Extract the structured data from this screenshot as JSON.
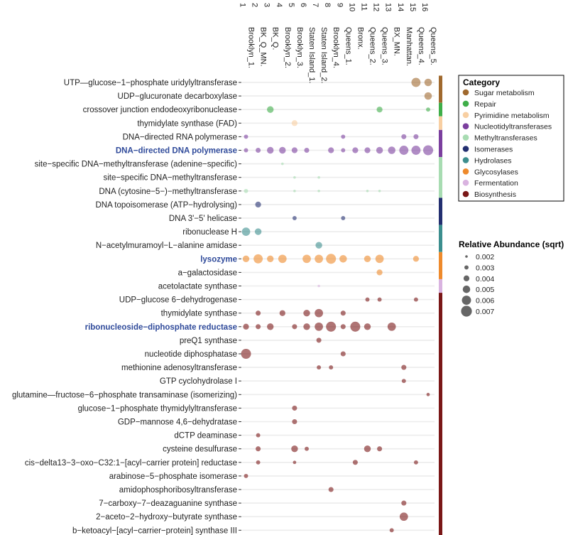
{
  "chart_data": {
    "type": "scatter",
    "title": "",
    "xlabel": "",
    "ylabel": "",
    "x_categories": [
      "Brooklyn_1.\n1",
      "BK_Q_MN.\n2",
      "BK_Q.\n3",
      "Brooklyn_2.\n4",
      "Brooklyn_3.\n5",
      "Staten Island_1.\n6",
      "Staten Island_2.\n7",
      "Brooklyn_4.\n8",
      "Queens_1.\n9",
      "Bronx.\n10",
      "Queens_2.\n11",
      "Queens_3.\n12",
      "BX_MN.\n13",
      "Manhattan.\n14",
      "Queens_4.\n15",
      "Queens_5.\n16"
    ],
    "y_categories": [
      {
        "label": "UTP—glucose−1−phosphate uridylyltransferase",
        "category": "Sugar metabolism",
        "highlight": false
      },
      {
        "label": "UDP−glucuronate decarboxylase",
        "category": "Sugar metabolism",
        "highlight": false
      },
      {
        "label": "crossover junction endodeoxyribonuclease",
        "category": "Repair",
        "highlight": false
      },
      {
        "label": "thymidylate synthase (FAD)",
        "category": "Pyrimidine metabolism",
        "highlight": false
      },
      {
        "label": "DNA−directed RNA polymerase",
        "category": "Nucleotidyltransferases",
        "highlight": false
      },
      {
        "label": "DNA−directed DNA polymerase",
        "category": "Nucleotidyltransferases",
        "highlight": true
      },
      {
        "label": "site−specific DNA−methyltransferase (adenine−specific)",
        "category": "Methyltransferases",
        "highlight": false
      },
      {
        "label": "site−specific DNA−methyltransferase",
        "category": "Methyltransferases",
        "highlight": false
      },
      {
        "label": "DNA (cytosine−5−)−methyltransferase",
        "category": "Methyltransferases",
        "highlight": false
      },
      {
        "label": "DNA topoisomerase (ATP−hydrolysing)",
        "category": "Isomerases",
        "highlight": false
      },
      {
        "label": "DNA 3'−5' helicase",
        "category": "Isomerases",
        "highlight": false
      },
      {
        "label": "ribonuclease H",
        "category": "Hydrolases",
        "highlight": false
      },
      {
        "label": "N−acetylmuramoyl−L−alanine amidase",
        "category": "Hydrolases",
        "highlight": false
      },
      {
        "label": "lysozyme",
        "category": "Glycosylases",
        "highlight": true
      },
      {
        "label": "a−galactosidase",
        "category": "Glycosylases",
        "highlight": false
      },
      {
        "label": "acetolactate synthase",
        "category": "Fermentation",
        "highlight": false
      },
      {
        "label": "UDP−glucose 6−dehydrogenase",
        "category": "Biosynthesis",
        "highlight": false
      },
      {
        "label": "thymidylate synthase",
        "category": "Biosynthesis",
        "highlight": false
      },
      {
        "label": "ribonucleoside−diphosphate reductase",
        "category": "Biosynthesis",
        "highlight": true
      },
      {
        "label": "preQ1 synthase",
        "category": "Biosynthesis",
        "highlight": false
      },
      {
        "label": "nucleotide diphosphatase",
        "category": "Biosynthesis",
        "highlight": false
      },
      {
        "label": "methionine adenosyltransferase",
        "category": "Biosynthesis",
        "highlight": false
      },
      {
        "label": "GTP cyclohydrolase I",
        "category": "Biosynthesis",
        "highlight": false
      },
      {
        "label": "glutamine—fructose−6−phosphate transaminase (isomerizing)",
        "category": "Biosynthesis",
        "highlight": false
      },
      {
        "label": "glucose−1−phosphate thymidylyltransferase",
        "category": "Biosynthesis",
        "highlight": false
      },
      {
        "label": "GDP−mannose 4,6−dehydratase",
        "category": "Biosynthesis",
        "highlight": false
      },
      {
        "label": "dCTP deaminase",
        "category": "Biosynthesis",
        "highlight": false
      },
      {
        "label": "cysteine desulfurase",
        "category": "Biosynthesis",
        "highlight": false
      },
      {
        "label": "cis−delta13−3−oxo−C32:1−[acyl−carrier protein] reductase",
        "category": "Biosynthesis",
        "highlight": false
      },
      {
        "label": "arabinose−5−phosphate isomerase",
        "category": "Biosynthesis",
        "highlight": false
      },
      {
        "label": "amidophosphoribosyltransferase",
        "category": "Biosynthesis",
        "highlight": false
      },
      {
        "label": "7−carboxy−7−deazaguanine synthase",
        "category": "Biosynthesis",
        "highlight": false
      },
      {
        "label": "2−aceto−2−hydroxy−butyrate synthase",
        "category": "Biosynthesis",
        "highlight": false
      },
      {
        "label": "b−ketoacyl−[acyl−carrier−protein] synthase III",
        "category": "Biosynthesis",
        "highlight": false
      }
    ],
    "categories_legend": {
      "title": "Category",
      "placement": "right",
      "items": [
        {
          "name": "Sugar metabolism",
          "color": "#a0692e"
        },
        {
          "name": "Repair",
          "color": "#3fae49"
        },
        {
          "name": "Pyrimidine metabolism",
          "color": "#f8cfa2"
        },
        {
          "name": "Nucleotidyltransferases",
          "color": "#7b3f9e"
        },
        {
          "name": "Methyltransferases",
          "color": "#a8dcb2"
        },
        {
          "name": "Isomerases",
          "color": "#232f70"
        },
        {
          "name": "Hydrolases",
          "color": "#3c8e8e"
        },
        {
          "name": "Glycosylases",
          "color": "#ee8a2c"
        },
        {
          "name": "Fermentation",
          "color": "#d9b3e0"
        },
        {
          "name": "Biosynthesis",
          "color": "#7a1717"
        }
      ]
    },
    "size_legend": {
      "title": "Relative Abundance (sqrt)",
      "placement": "right",
      "values": [
        0.002,
        0.003,
        0.004,
        0.005,
        0.006,
        0.007
      ]
    },
    "points": [
      {
        "row": 0,
        "col": 15,
        "value": 0.006
      },
      {
        "row": 0,
        "col": 16,
        "value": 0.005
      },
      {
        "row": 1,
        "col": 16,
        "value": 0.005
      },
      {
        "row": 2,
        "col": 3,
        "value": 0.0045
      },
      {
        "row": 2,
        "col": 12,
        "value": 0.004
      },
      {
        "row": 2,
        "col": 16,
        "value": 0.003
      },
      {
        "row": 3,
        "col": 5,
        "value": 0.004
      },
      {
        "row": 4,
        "col": 1,
        "value": 0.003
      },
      {
        "row": 4,
        "col": 9,
        "value": 0.003
      },
      {
        "row": 4,
        "col": 14,
        "value": 0.0035
      },
      {
        "row": 4,
        "col": 15,
        "value": 0.0035
      },
      {
        "row": 5,
        "col": 1,
        "value": 0.003
      },
      {
        "row": 5,
        "col": 2,
        "value": 0.0035
      },
      {
        "row": 5,
        "col": 3,
        "value": 0.0045
      },
      {
        "row": 5,
        "col": 4,
        "value": 0.0045
      },
      {
        "row": 5,
        "col": 5,
        "value": 0.004
      },
      {
        "row": 5,
        "col": 6,
        "value": 0.0035
      },
      {
        "row": 5,
        "col": 8,
        "value": 0.004
      },
      {
        "row": 5,
        "col": 9,
        "value": 0.003
      },
      {
        "row": 5,
        "col": 10,
        "value": 0.004
      },
      {
        "row": 5,
        "col": 11,
        "value": 0.004
      },
      {
        "row": 5,
        "col": 12,
        "value": 0.0045
      },
      {
        "row": 5,
        "col": 13,
        "value": 0.005
      },
      {
        "row": 5,
        "col": 14,
        "value": 0.006
      },
      {
        "row": 5,
        "col": 15,
        "value": 0.006
      },
      {
        "row": 5,
        "col": 16,
        "value": 0.0065
      },
      {
        "row": 6,
        "col": 4,
        "value": 0.002
      },
      {
        "row": 7,
        "col": 5,
        "value": 0.002
      },
      {
        "row": 7,
        "col": 7,
        "value": 0.002
      },
      {
        "row": 8,
        "col": 1,
        "value": 0.003
      },
      {
        "row": 8,
        "col": 5,
        "value": 0.002
      },
      {
        "row": 8,
        "col": 7,
        "value": 0.002
      },
      {
        "row": 8,
        "col": 11,
        "value": 0.002
      },
      {
        "row": 8,
        "col": 12,
        "value": 0.002
      },
      {
        "row": 9,
        "col": 2,
        "value": 0.004
      },
      {
        "row": 10,
        "col": 5,
        "value": 0.003
      },
      {
        "row": 10,
        "col": 9,
        "value": 0.003
      },
      {
        "row": 11,
        "col": 1,
        "value": 0.0055
      },
      {
        "row": 11,
        "col": 2,
        "value": 0.0045
      },
      {
        "row": 12,
        "col": 7,
        "value": 0.0045
      },
      {
        "row": 13,
        "col": 1,
        "value": 0.0045
      },
      {
        "row": 13,
        "col": 2,
        "value": 0.006
      },
      {
        "row": 13,
        "col": 3,
        "value": 0.0045
      },
      {
        "row": 13,
        "col": 4,
        "value": 0.0055
      },
      {
        "row": 13,
        "col": 6,
        "value": 0.0055
      },
      {
        "row": 13,
        "col": 7,
        "value": 0.0055
      },
      {
        "row": 13,
        "col": 8,
        "value": 0.0065
      },
      {
        "row": 13,
        "col": 9,
        "value": 0.005
      },
      {
        "row": 13,
        "col": 11,
        "value": 0.0045
      },
      {
        "row": 13,
        "col": 12,
        "value": 0.0055
      },
      {
        "row": 13,
        "col": 15,
        "value": 0.004
      },
      {
        "row": 14,
        "col": 12,
        "value": 0.004
      },
      {
        "row": 15,
        "col": 7,
        "value": 0.002
      },
      {
        "row": 16,
        "col": 11,
        "value": 0.003
      },
      {
        "row": 16,
        "col": 12,
        "value": 0.003
      },
      {
        "row": 16,
        "col": 15,
        "value": 0.003
      },
      {
        "row": 17,
        "col": 2,
        "value": 0.0035
      },
      {
        "row": 17,
        "col": 4,
        "value": 0.004
      },
      {
        "row": 17,
        "col": 6,
        "value": 0.0045
      },
      {
        "row": 17,
        "col": 7,
        "value": 0.0055
      },
      {
        "row": 17,
        "col": 9,
        "value": 0.0035
      },
      {
        "row": 18,
        "col": 1,
        "value": 0.004
      },
      {
        "row": 18,
        "col": 2,
        "value": 0.0035
      },
      {
        "row": 18,
        "col": 3,
        "value": 0.0045
      },
      {
        "row": 18,
        "col": 5,
        "value": 0.0035
      },
      {
        "row": 18,
        "col": 6,
        "value": 0.0045
      },
      {
        "row": 18,
        "col": 7,
        "value": 0.0055
      },
      {
        "row": 18,
        "col": 8,
        "value": 0.0065
      },
      {
        "row": 18,
        "col": 9,
        "value": 0.0035
      },
      {
        "row": 18,
        "col": 10,
        "value": 0.0065
      },
      {
        "row": 18,
        "col": 11,
        "value": 0.0045
      },
      {
        "row": 18,
        "col": 13,
        "value": 0.0055
      },
      {
        "row": 19,
        "col": 7,
        "value": 0.0035
      },
      {
        "row": 20,
        "col": 1,
        "value": 0.0065
      },
      {
        "row": 20,
        "col": 9,
        "value": 0.0035
      },
      {
        "row": 21,
        "col": 7,
        "value": 0.003
      },
      {
        "row": 21,
        "col": 8,
        "value": 0.003
      },
      {
        "row": 21,
        "col": 14,
        "value": 0.0035
      },
      {
        "row": 22,
        "col": 14,
        "value": 0.003
      },
      {
        "row": 23,
        "col": 16,
        "value": 0.0025
      },
      {
        "row": 24,
        "col": 5,
        "value": 0.0035
      },
      {
        "row": 25,
        "col": 5,
        "value": 0.0035
      },
      {
        "row": 26,
        "col": 2,
        "value": 0.003
      },
      {
        "row": 27,
        "col": 2,
        "value": 0.0035
      },
      {
        "row": 27,
        "col": 5,
        "value": 0.0045
      },
      {
        "row": 27,
        "col": 6,
        "value": 0.003
      },
      {
        "row": 27,
        "col": 11,
        "value": 0.0045
      },
      {
        "row": 27,
        "col": 12,
        "value": 0.0035
      },
      {
        "row": 28,
        "col": 2,
        "value": 0.003
      },
      {
        "row": 28,
        "col": 5,
        "value": 0.0025
      },
      {
        "row": 28,
        "col": 10,
        "value": 0.0035
      },
      {
        "row": 28,
        "col": 15,
        "value": 0.003
      },
      {
        "row": 29,
        "col": 1,
        "value": 0.003
      },
      {
        "row": 30,
        "col": 8,
        "value": 0.0035
      },
      {
        "row": 31,
        "col": 14,
        "value": 0.0035
      },
      {
        "row": 32,
        "col": 14,
        "value": 0.0055
      },
      {
        "row": 33,
        "col": 13,
        "value": 0.003
      }
    ]
  }
}
